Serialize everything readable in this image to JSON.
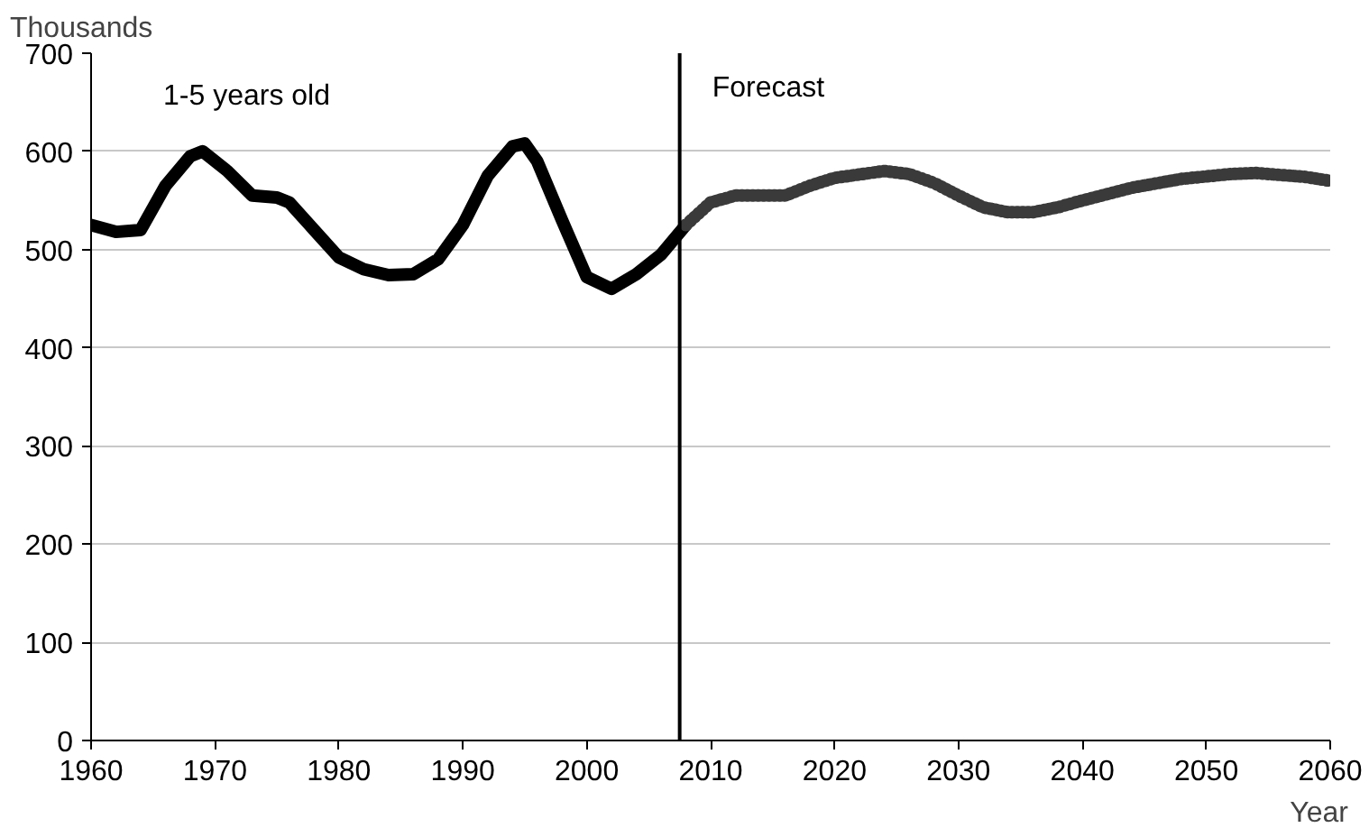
{
  "chart_data": {
    "type": "line",
    "xlabel": "Year",
    "ylabel": "Thousands",
    "series": [
      {
        "name": "1-5 years old",
        "color": "#000000",
        "line_style": "solid",
        "x": [
          1960,
          1962,
          1964,
          1966,
          1968,
          1969,
          1971,
          1973,
          1975,
          1976,
          1978,
          1980,
          1982,
          1984,
          1986,
          1988,
          1990,
          1992,
          1994,
          1995,
          1996,
          1998,
          2000,
          2002,
          2004,
          2006,
          2008
        ],
        "values": [
          525,
          518,
          520,
          565,
          595,
          600,
          580,
          555,
          553,
          548,
          520,
          492,
          480,
          474,
          475,
          490,
          525,
          575,
          605,
          608,
          590,
          530,
          472,
          460,
          475,
          495,
          525
        ]
      },
      {
        "color": "#3a3a3a",
        "line_style": "dotted",
        "x": [
          2008,
          2010,
          2012,
          2016,
          2018,
          2020,
          2024,
          2026,
          2028,
          2030,
          2032,
          2034,
          2036,
          2038,
          2040,
          2044,
          2048,
          2052,
          2054,
          2058,
          2060
        ],
        "values": [
          525,
          548,
          555,
          555,
          565,
          573,
          580,
          577,
          568,
          555,
          543,
          538,
          538,
          543,
          550,
          563,
          572,
          577,
          578,
          574,
          570
        ]
      }
    ],
    "ref_lines": [
      {
        "axis": "x",
        "value": 2007.5,
        "label": "Forecast",
        "color": "#000000"
      }
    ],
    "xlim": [
      1960,
      2060
    ],
    "xticks": [
      1960,
      1970,
      1980,
      1990,
      2000,
      2010,
      2020,
      2030,
      2040,
      2050,
      2060
    ],
    "ylim": [
      0,
      700
    ],
    "yticks": [
      0,
      100,
      200,
      300,
      400,
      500,
      600,
      700
    ],
    "grid": "y",
    "marker": "none"
  }
}
